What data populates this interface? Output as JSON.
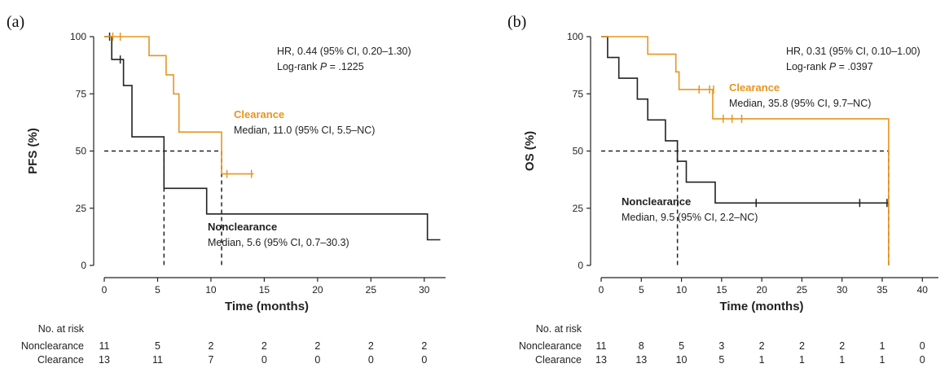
{
  "chart_data": [
    {
      "type": "line",
      "subtype": "kaplan-meier",
      "panel": "(a)",
      "xlabel": "Time (months)",
      "ylabel": "PFS (%)",
      "xlim": [
        0,
        32
      ],
      "ylim": [
        0,
        100
      ],
      "xticks": [
        "0",
        "5",
        "10",
        "15",
        "20",
        "25",
        "30"
      ],
      "yticks": [
        "0",
        "25",
        "50",
        "75",
        "100"
      ],
      "grid": false,
      "stats": {
        "hr": "HR, 0.44 (95% CI, 0.20–1.30)",
        "logrank_prefix": "Log-rank ",
        "logrank_p": "P",
        "logrank_value": " = .1225"
      },
      "series": [
        {
          "name": "Clearance",
          "color": "#E8951F",
          "median_text": "Median, 11.0 (95% CI, 5.5–NC)",
          "steps": [
            [
              0,
              100
            ],
            [
              4.2,
              100
            ],
            [
              4.2,
              91.7
            ],
            [
              5.8,
              91.7
            ],
            [
              5.8,
              83.3
            ],
            [
              6.5,
              83.3
            ],
            [
              6.5,
              75
            ],
            [
              7,
              75
            ],
            [
              7,
              58.3
            ],
            [
              11,
              58.3
            ],
            [
              11,
              40
            ],
            [
              14,
              40
            ]
          ],
          "censors": [
            [
              0.8,
              100
            ],
            [
              1.5,
              100
            ],
            [
              11.5,
              40
            ],
            [
              13.8,
              40
            ]
          ]
        },
        {
          "name": "Nonclearance",
          "color": "#222222",
          "median_text": "Median, 5.6 (95% CI, 0.7–30.3)",
          "steps": [
            [
              0,
              100
            ],
            [
              0.7,
              100
            ],
            [
              0.7,
              90
            ],
            [
              1.8,
              90
            ],
            [
              1.8,
              78.6
            ],
            [
              2.6,
              78.6
            ],
            [
              2.6,
              56.2
            ],
            [
              5.6,
              56.2
            ],
            [
              5.6,
              33.7
            ],
            [
              9.6,
              33.7
            ],
            [
              9.6,
              22.5
            ],
            [
              30.3,
              22.5
            ],
            [
              30.3,
              11.2
            ],
            [
              31.5,
              11.2
            ]
          ],
          "censors": [
            [
              0.5,
              100
            ],
            [
              1.5,
              90
            ]
          ]
        }
      ],
      "median_line": {
        "y": 50,
        "x_end": 11,
        "drops": [
          5.6,
          11
        ]
      },
      "risk_table": {
        "title": "No. at risk",
        "times": [
          0,
          5,
          10,
          15,
          20,
          25,
          30
        ],
        "rows": [
          {
            "label": "Nonclearance",
            "values": [
              "11",
              "5",
              "2",
              "2",
              "2",
              "2",
              "2"
            ]
          },
          {
            "label": "Clearance",
            "values": [
              "13",
              "11",
              "7",
              "0",
              "0",
              "0",
              "0"
            ]
          }
        ]
      }
    },
    {
      "type": "line",
      "subtype": "kaplan-meier",
      "panel": "(b)",
      "xlabel": "Time (months)",
      "ylabel": "OS (%)",
      "xlim": [
        0,
        42
      ],
      "ylim": [
        0,
        100
      ],
      "xticks": [
        "0",
        "5",
        "10",
        "15",
        "20",
        "25",
        "30",
        "35",
        "40"
      ],
      "yticks": [
        "0",
        "25",
        "50",
        "75",
        "100"
      ],
      "grid": false,
      "stats": {
        "hr": "HR, 0.31 (95% CI, 0.10–1.00)",
        "logrank_prefix": "Log-rank ",
        "logrank_p": "P",
        "logrank_value": " = .0397"
      },
      "series": [
        {
          "name": "Clearance",
          "color": "#E8951F",
          "median_text": "Median, 35.8 (95% CI, 9.7–NC)",
          "steps": [
            [
              0,
              100
            ],
            [
              5.8,
              100
            ],
            [
              5.8,
              92.3
            ],
            [
              9.3,
              92.3
            ],
            [
              9.3,
              84.6
            ],
            [
              9.7,
              84.6
            ],
            [
              9.7,
              76.9
            ],
            [
              13.9,
              76.9
            ],
            [
              13.9,
              64.1
            ],
            [
              35.8,
              64.1
            ],
            [
              35.8,
              0
            ]
          ],
          "censors": [
            [
              12.2,
              76.9
            ],
            [
              13.5,
              76.9
            ],
            [
              14,
              76.9
            ],
            [
              15.2,
              64.1
            ],
            [
              16.3,
              64.1
            ],
            [
              17.5,
              64.1
            ]
          ]
        },
        {
          "name": "Nonclearance",
          "color": "#222222",
          "median_text": "Median, 9.5 (95% CI, 2.2–NC)",
          "steps": [
            [
              0,
              100
            ],
            [
              0.8,
              100
            ],
            [
              0.8,
              90.9
            ],
            [
              2.2,
              90.9
            ],
            [
              2.2,
              81.8
            ],
            [
              4.5,
              81.8
            ],
            [
              4.5,
              72.7
            ],
            [
              5.8,
              72.7
            ],
            [
              5.8,
              63.6
            ],
            [
              8,
              63.6
            ],
            [
              8,
              54.5
            ],
            [
              9.5,
              54.5
            ],
            [
              9.5,
              45.5
            ],
            [
              10.6,
              45.5
            ],
            [
              10.6,
              36.4
            ],
            [
              14.2,
              36.4
            ],
            [
              14.2,
              27.3
            ],
            [
              35.8,
              27.3
            ]
          ],
          "censors": [
            [
              19.3,
              27.3
            ],
            [
              32.2,
              27.3
            ],
            [
              35.6,
              27.3
            ]
          ]
        }
      ],
      "median_line": {
        "y": 50,
        "x_end": 35.8,
        "drops": [
          9.5,
          35.8
        ]
      },
      "risk_table": {
        "title": "No. at risk",
        "times": [
          0,
          5,
          10,
          15,
          20,
          25,
          30,
          35,
          40
        ],
        "rows": [
          {
            "label": "Nonclearance",
            "values": [
              "11",
              "8",
              "5",
              "3",
              "2",
              "2",
              "2",
              "1",
              "0"
            ]
          },
          {
            "label": "Clearance",
            "values": [
              "13",
              "13",
              "10",
              "5",
              "1",
              "1",
              "1",
              "1",
              "0"
            ]
          }
        ]
      }
    }
  ]
}
